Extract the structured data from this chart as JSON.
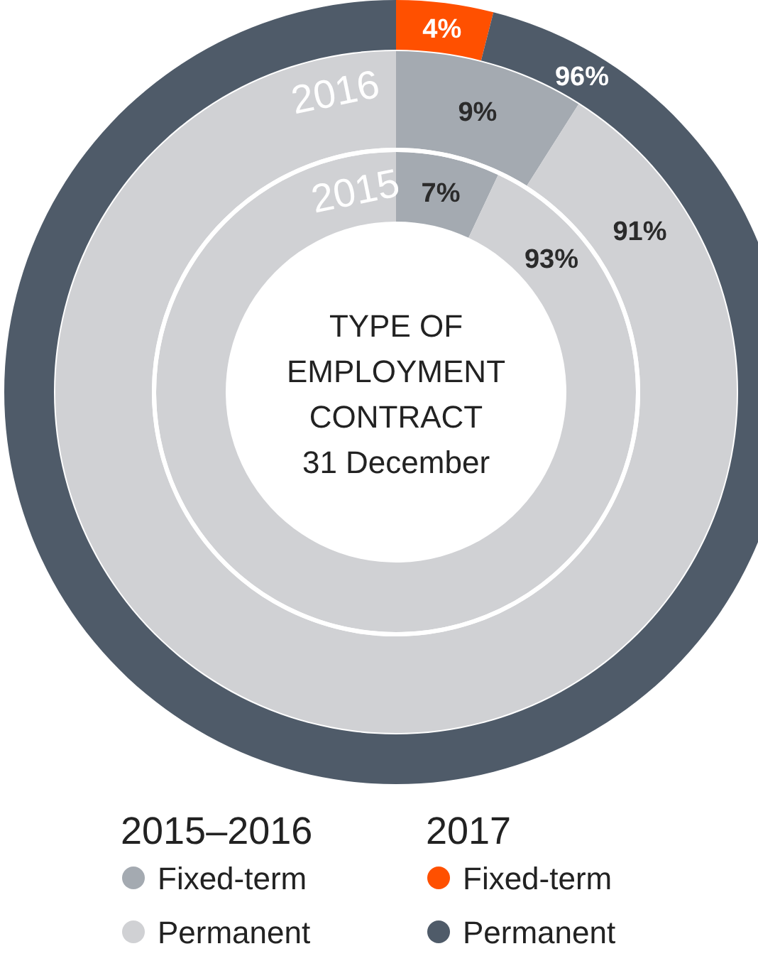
{
  "chart_data": [
    {
      "type": "donut",
      "title": "TYPE OF EMPLOYMENT CONTRACT",
      "subtitle": "31 December",
      "categories": [
        "Fixed-term",
        "Permanent"
      ],
      "values": [
        4,
        96
      ],
      "colors": [
        "#ff5000",
        "#4f5b69"
      ],
      "value_labels": [
        "4%",
        "96%"
      ],
      "legend_title": "2017",
      "legend": "bottom"
    },
    {
      "type": "donut",
      "title": "2016",
      "categories": [
        "Fixed-term",
        "Permanent"
      ],
      "values": [
        9,
        91
      ],
      "colors": [
        "#a4aab1",
        "#d0d1d4"
      ],
      "value_labels": [
        "9%",
        "91%"
      ],
      "legend_title": "2015–2016",
      "legend": "bottom"
    },
    {
      "type": "donut",
      "title": "2015",
      "categories": [
        null,
        null
      ],
      "values": [
        7,
        93
      ],
      "colors": [
        "#a4aab1",
        "#d0d1d4"
      ],
      "value_labels": [
        "7%",
        "93%"
      ]
    }
  ]
}
